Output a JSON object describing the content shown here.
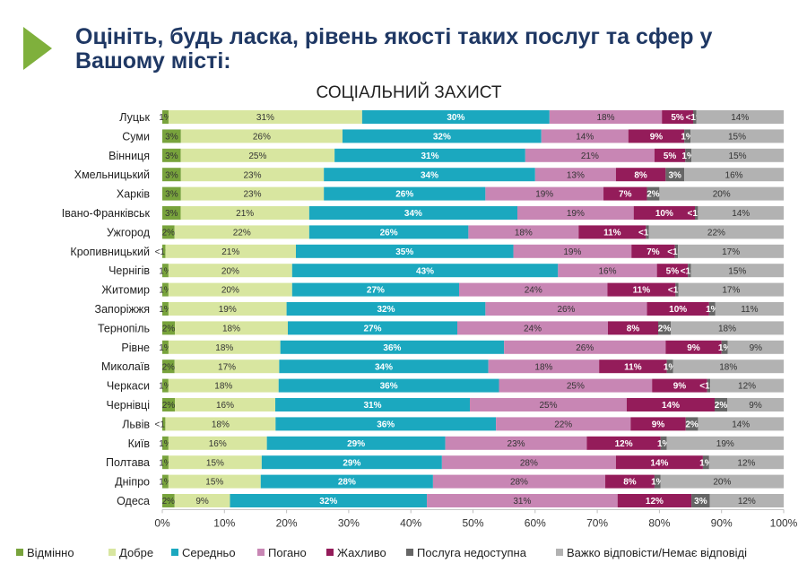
{
  "title": "Оцініть, будь ласка, рівень якості таких послуг та сфер у Вашому місті:",
  "colors": {
    "arrow": "#7fb03c",
    "title_text": "#1f3864",
    "excellent": "#78a33c",
    "good": "#d8e6a0",
    "average": "#1ba8bf",
    "bad": "#c886b4",
    "terrible": "#941c5a",
    "unavailable": "#666666",
    "dk": "#b2b2b2"
  },
  "chart_data": {
    "type": "bar",
    "orientation": "horizontal",
    "stacked": true,
    "percent": true,
    "title": "СОЦІАЛЬНИЙ ЗАХИСТ",
    "xlim": [
      0,
      100
    ],
    "x_ticks": [
      "0%",
      "10%",
      "20%",
      "30%",
      "40%",
      "50%",
      "60%",
      "70%",
      "80%",
      "90%",
      "100%"
    ],
    "grid": false,
    "legend_position": "bottom",
    "categories": [
      "Луцьк",
      "Суми",
      "Вінниця",
      "Хмельницький",
      "Харків",
      "Івано-Франківськ",
      "Ужгород",
      "Кропивницький",
      "Чернігів",
      "Житомир",
      "Запоріжжя",
      "Тернопіль",
      "Рівне",
      "Миколаїв",
      "Черкаси",
      "Чернівці",
      "Львів",
      "Київ",
      "Полтава",
      "Дніпро",
      "Одеса"
    ],
    "series": [
      {
        "key": "excellent",
        "name": "Відмінно",
        "values": [
          1,
          3,
          3,
          3,
          3,
          3,
          2,
          0.5,
          1,
          1,
          1,
          2,
          1,
          2,
          1,
          2,
          0.5,
          1,
          1,
          1,
          2
        ],
        "labels": [
          "1%",
          "3%",
          "3%",
          "3%",
          "3%",
          "3%",
          "2%",
          "<1%",
          "1%",
          "1%",
          "1%",
          "2%",
          "1%",
          "2%",
          "1%",
          "2%",
          "<1%",
          "1%",
          "1%",
          "1%",
          "2%"
        ]
      },
      {
        "key": "good",
        "name": "Добре",
        "values": [
          31,
          26,
          25,
          23,
          23,
          21,
          22,
          21,
          20,
          20,
          19,
          18,
          18,
          17,
          18,
          16,
          18,
          16,
          15,
          15,
          9
        ],
        "labels": [
          "31%",
          "26%",
          "25%",
          "23%",
          "23%",
          "21%",
          "22%",
          "21%",
          "20%",
          "20%",
          "19%",
          "18%",
          "18%",
          "17%",
          "18%",
          "16%",
          "18%",
          "16%",
          "15%",
          "15%",
          "9%"
        ]
      },
      {
        "key": "average",
        "name": "Середньо",
        "values": [
          30,
          32,
          31,
          34,
          26,
          34,
          26,
          35,
          43,
          27,
          32,
          27,
          36,
          34,
          36,
          31,
          36,
          29,
          29,
          28,
          32
        ],
        "labels": [
          "30%",
          "32%",
          "31%",
          "34%",
          "26%",
          "34%",
          "26%",
          "35%",
          "43%",
          "27%",
          "32%",
          "27%",
          "36%",
          "34%",
          "36%",
          "31%",
          "36%",
          "29%",
          "29%",
          "28%",
          "32%"
        ]
      },
      {
        "key": "bad",
        "name": "Погано",
        "values": [
          18,
          14,
          21,
          13,
          19,
          19,
          18,
          19,
          16,
          24,
          26,
          24,
          26,
          18,
          25,
          25,
          22,
          23,
          28,
          28,
          31
        ],
        "labels": [
          "18%",
          "14%",
          "21%",
          "13%",
          "19%",
          "19%",
          "18%",
          "19%",
          "16%",
          "24%",
          "26%",
          "24%",
          "26%",
          "18%",
          "25%",
          "25%",
          "22%",
          "23%",
          "28%",
          "28%",
          "31%"
        ]
      },
      {
        "key": "terrible",
        "name": "Жахливо",
        "values": [
          5,
          9,
          5,
          8,
          7,
          10,
          11,
          7,
          5,
          11,
          10,
          8,
          9,
          11,
          9,
          14,
          9,
          12,
          14,
          8,
          12
        ],
        "labels": [
          "5%",
          "9%",
          "5%",
          "8%",
          "7%",
          "10%",
          "11%",
          "7%",
          "5%",
          "11%",
          "10%",
          "8%",
          "9%",
          "11%",
          "9%",
          "14%",
          "9%",
          "12%",
          "14%",
          "8%",
          "12%"
        ]
      },
      {
        "key": "unavailable",
        "name": "Послуга недоступна",
        "values": [
          0.5,
          1,
          1,
          3,
          2,
          0.5,
          0.5,
          0.5,
          0.5,
          0.5,
          1,
          2,
          1,
          1,
          0.5,
          2,
          2,
          1,
          1,
          1,
          3
        ],
        "labels": [
          "<1%",
          "1%",
          "1%",
          "3%",
          "2%",
          "<1%",
          "<1%",
          "<1%",
          "<1%",
          "<1%",
          "1%",
          "2%",
          "1%",
          "1%",
          "<1%",
          "2%",
          "2%",
          "1%",
          "1%",
          "1%",
          "3%"
        ]
      },
      {
        "key": "dk",
        "name": "Важко відповісти/Немає відповіді",
        "values": [
          14,
          15,
          15,
          16,
          20,
          14,
          22,
          17,
          15,
          17,
          11,
          18,
          9,
          18,
          12,
          9,
          14,
          19,
          12,
          20,
          12
        ],
        "labels": [
          "14%",
          "15%",
          "15%",
          "16%",
          "20%",
          "14%",
          "22%",
          "17%",
          "15%",
          "17%",
          "11%",
          "18%",
          "9%",
          "18%",
          "12%",
          "9%",
          "14%",
          "19%",
          "12%",
          "20%",
          "12%"
        ]
      }
    ]
  }
}
